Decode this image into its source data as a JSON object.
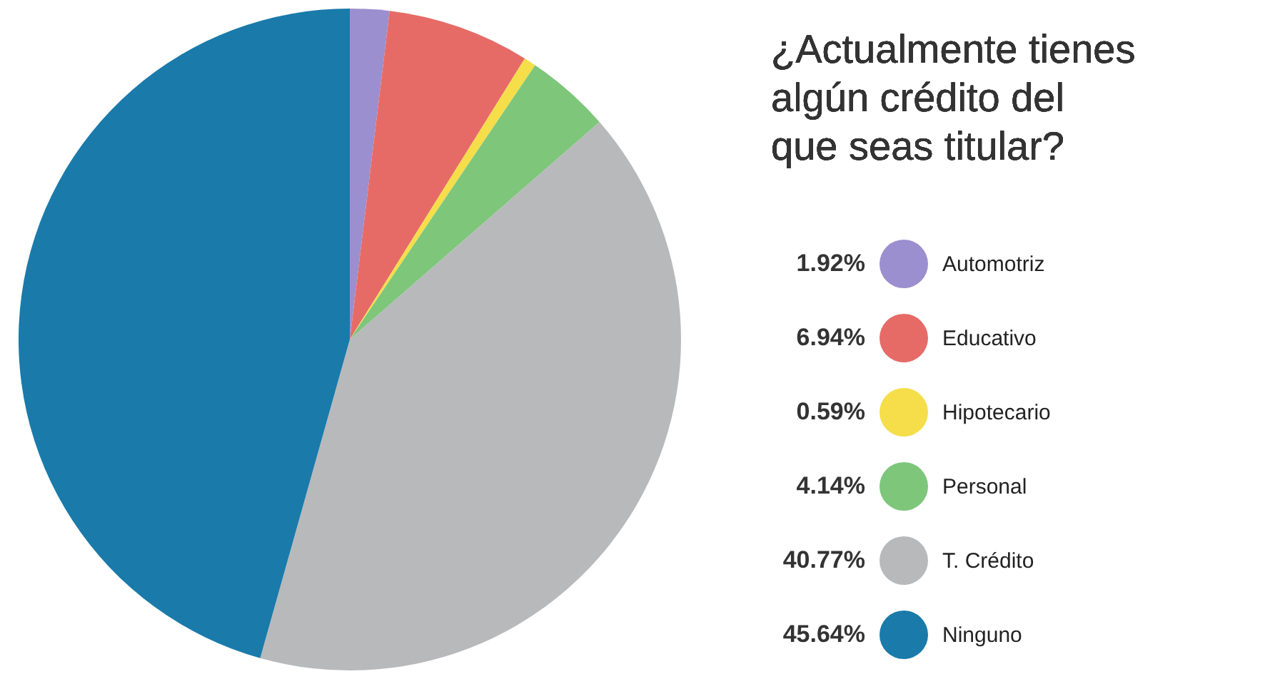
{
  "chart_data": {
    "type": "pie",
    "title": "¿Actualmente tienes algún crédito del que seas titular?",
    "categories": [
      "Automotriz",
      "Educativo",
      "Hipotecario",
      "Personal",
      "T. Crédito",
      "Ninguno"
    ],
    "values": [
      1.92,
      6.94,
      0.59,
      4.14,
      40.77,
      45.64
    ],
    "value_labels": [
      "1.92%",
      "6.94%",
      "0.59%",
      "4.14%",
      "40.77%",
      "45.64%"
    ],
    "colors": [
      "#9b8fcf",
      "#e66b67",
      "#f5de4a",
      "#7dc67a",
      "#b8b9bb",
      "#1a7aaa"
    ],
    "legend": "right"
  }
}
